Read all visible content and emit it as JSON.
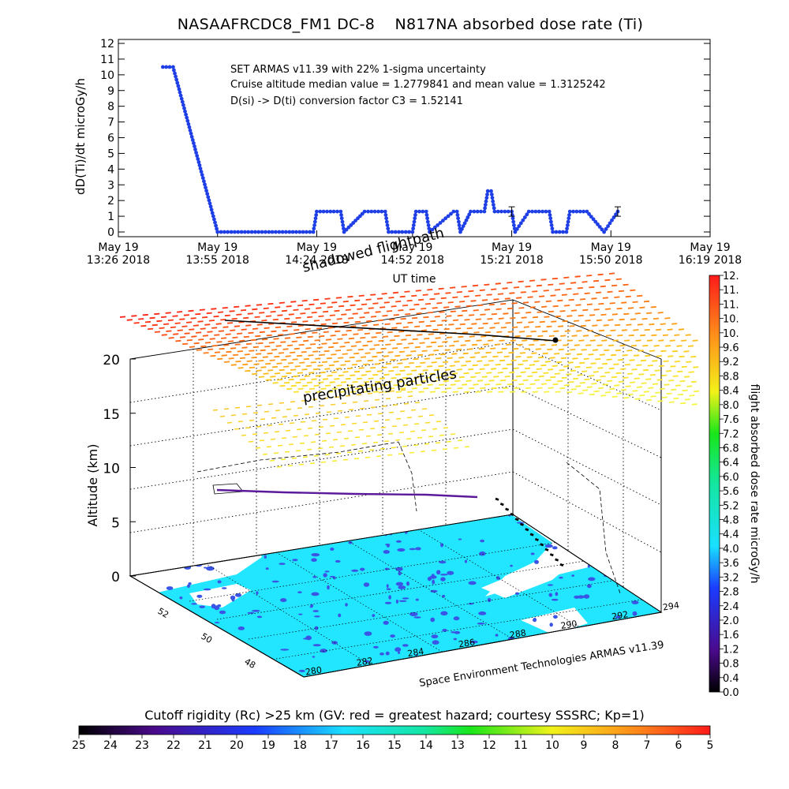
{
  "title": "NASAAFRCDC8_FM1 DC-8    N817NA absorbed dose rate (Ti)",
  "top_chart": {
    "ylabel": "dD(Ti)/dt microGy/h",
    "xlabel": "UT time",
    "annotations": [
      "SET ARMAS v11.39 with 22% 1-sigma uncertainty",
      "Cruise altitude median value = 1.2779841 and mean value = 1.3125242",
      "D(si) -> D(ti) conversion factor C3 = 1.52141"
    ]
  },
  "chart_data": [
    {
      "type": "line",
      "title": "NASAAFRCDC8_FM1 DC-8    N817NA absorbed dose rate (Ti)",
      "xlabel": "UT time",
      "ylabel": "dD(Ti)/dt microGy/h",
      "ylim": [
        0,
        12
      ],
      "xlim": [
        "2018-05-19 13:26",
        "2018-05-19 16:19"
      ],
      "x_ticks": [
        "13:26",
        "13:55",
        "14:24",
        "14:52",
        "15:21",
        "15:50",
        "16:19"
      ],
      "x_tick_labels": [
        [
          "May 19",
          "13:26 2018"
        ],
        [
          "May 19",
          "13:55 2018"
        ],
        [
          "May 19",
          "14:24 2018"
        ],
        [
          "May 19",
          "14:52 2018"
        ],
        [
          "May 19",
          "15:21 2018"
        ],
        [
          "May 19",
          "15:50 2018"
        ],
        [
          "May 19",
          "16:19 2018"
        ]
      ],
      "y_ticks": [
        0,
        1,
        2,
        3,
        4,
        5,
        6,
        7,
        8,
        9,
        10,
        11,
        12
      ],
      "series": [
        {
          "color": "#1f3fe6",
          "x": [
            "13:39",
            "13:42",
            "13:55",
            "14:10",
            "14:23",
            "14:24",
            "14:26",
            "14:31",
            "14:32",
            "14:38",
            "14:39",
            "14:44",
            "14:45",
            "14:48",
            "14:49",
            "14:52",
            "14:53",
            "14:54",
            "14:56",
            "14:57",
            "15:04",
            "15:05",
            "15:06",
            "15:09",
            "15:10",
            "15:13",
            "15:14",
            "15:15",
            "15:16",
            "15:21",
            "15:22",
            "15:26",
            "15:27",
            "15:32",
            "15:33",
            "15:37",
            "15:38",
            "15:42",
            "15:43",
            "15:48",
            "15:52"
          ],
          "values": [
            10.5,
            10.5,
            0,
            0,
            0,
            1.3,
            1.3,
            1.3,
            0,
            1.3,
            1.3,
            1.3,
            0,
            0,
            0,
            0,
            1.3,
            1.3,
            1.3,
            0,
            1.3,
            1.3,
            0,
            1.3,
            1.3,
            1.3,
            2.6,
            2.6,
            1.3,
            1.3,
            0,
            1.3,
            1.3,
            1.3,
            0,
            0,
            1.3,
            1.3,
            1.3,
            0,
            1.3
          ]
        }
      ],
      "error_bars": [
        {
          "x": "15:21",
          "value": 1.3,
          "err": 0.3
        },
        {
          "x": "15:52",
          "value": 1.3,
          "err": 0.3
        }
      ]
    },
    {
      "type": "scatter",
      "subtype": "3d-perspective",
      "zlabel": "Altitude (km)",
      "z_ticks": [
        0,
        5,
        10,
        15,
        20
      ],
      "x_ticks": [
        280,
        282,
        284,
        286,
        288,
        290,
        292,
        294
      ],
      "y_ticks": [
        48,
        50,
        52
      ],
      "annotations": [
        "shadowed flightpath",
        "precipitating particles"
      ],
      "credit": "Space Environment Technologies ARMAS v11.39",
      "flight_altitude_km": 7.5,
      "colorbar": {
        "label": "flight absorbed dose rate microGy/h",
        "ticks": [
          "0.0",
          "0.4",
          "0.8",
          "1.2",
          "1.6",
          "2.0",
          "2.4",
          "2.8",
          "3.2",
          "3.6",
          "4.0",
          "4.4",
          "4.8",
          "5.2",
          "5.6",
          "6.0",
          "6.4",
          "6.8",
          "7.2",
          "7.6",
          "8.0",
          "8.4",
          "8.8",
          "9.2",
          "9.6",
          "10.",
          "10.",
          "11.",
          "11.",
          "12."
        ]
      }
    },
    {
      "type": "heatmap",
      "title": "Cutoff rigidity (Rc) >25 km (GV: red = greatest hazard; courtesy SSSRC; Kp=1)",
      "ticks": [
        25,
        24,
        23,
        22,
        21,
        20,
        19,
        18,
        17,
        16,
        15,
        14,
        13,
        12,
        11,
        10,
        9,
        8,
        7,
        6,
        5
      ]
    }
  ],
  "colors": {
    "data": "#1f3fe6",
    "land": "#22e6ff",
    "water": "#3a55e6",
    "flight_path": "#5a1a9a"
  }
}
